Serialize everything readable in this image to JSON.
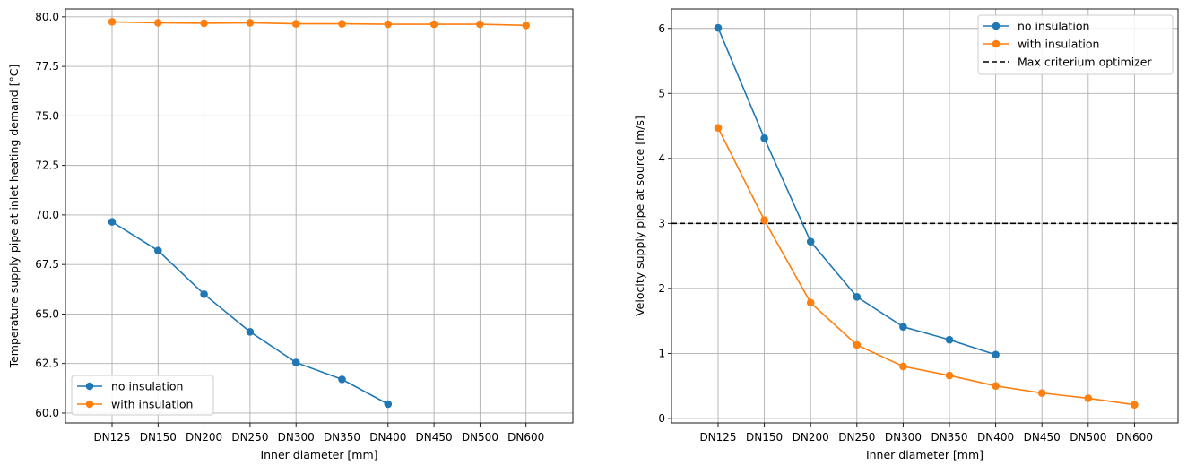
{
  "chart_data": [
    {
      "type": "line",
      "categories": [
        "DN125",
        "DN150",
        "DN200",
        "DN250",
        "DN300",
        "DN350",
        "DN400",
        "DN450",
        "DN500",
        "DN600"
      ],
      "xlabel": "Inner diameter [mm]",
      "ylabel": "Temperature supply pipe at inlet heating demand [°C]",
      "ylim": [
        59.5,
        80.4
      ],
      "yticks": [
        60.0,
        62.5,
        65.0,
        67.5,
        70.0,
        72.5,
        75.0,
        77.5,
        80.0
      ],
      "ytick_labels": [
        "60.0",
        "62.5",
        "65.0",
        "67.5",
        "70.0",
        "72.5",
        "75.0",
        "77.5",
        "80.0"
      ],
      "grid": true,
      "legend_position": "lower-left",
      "series": [
        {
          "name": "no insulation",
          "color": "#1f77b4",
          "values": [
            69.65,
            68.2,
            66.0,
            64.1,
            62.55,
            61.7,
            60.45,
            null,
            null,
            null
          ]
        },
        {
          "name": "with  insulation",
          "color": "#ff7f0e",
          "values": [
            79.75,
            79.7,
            79.68,
            79.7,
            79.65,
            79.65,
            79.63,
            79.63,
            79.63,
            79.57
          ]
        }
      ]
    },
    {
      "type": "line",
      "categories": [
        "DN125",
        "DN150",
        "DN200",
        "DN250",
        "DN300",
        "DN350",
        "DN400",
        "DN450",
        "DN500",
        "DN600"
      ],
      "xlabel": "Inner diameter [mm]",
      "ylabel": "Velocity supply pipe at source [m/s]",
      "ylim": [
        -0.07,
        6.3
      ],
      "yticks": [
        0,
        1,
        2,
        3,
        4,
        5,
        6
      ],
      "ytick_labels": [
        "0",
        "1",
        "2",
        "3",
        "4",
        "5",
        "6"
      ],
      "grid": true,
      "legend_position": "upper-right",
      "reference_line": {
        "name": "Max criterium optimizer",
        "y": 3,
        "color": "#000000"
      },
      "series": [
        {
          "name": "no insulation",
          "color": "#1f77b4",
          "values": [
            6.01,
            4.31,
            2.72,
            1.87,
            1.41,
            1.21,
            0.98,
            null,
            null,
            null
          ]
        },
        {
          "name": "with insulation",
          "color": "#ff7f0e",
          "values": [
            4.47,
            3.05,
            1.78,
            1.13,
            0.8,
            0.66,
            0.5,
            0.39,
            0.31,
            0.21
          ]
        }
      ]
    }
  ]
}
